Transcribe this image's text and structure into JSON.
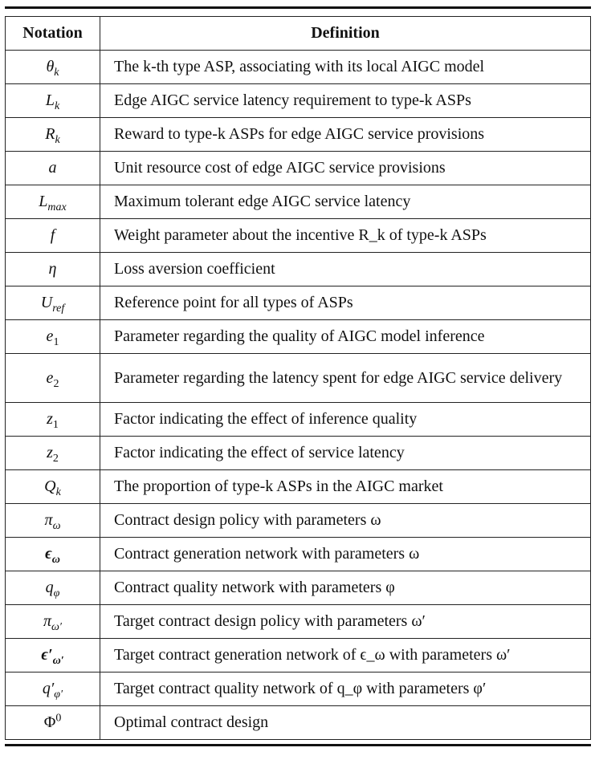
{
  "header": {
    "notation": "Notation",
    "definition": "Definition"
  },
  "rows": [
    {
      "sym": "θ",
      "sub": "k",
      "def": "The k-th type ASP, associating with its local AIGC model"
    },
    {
      "sym": "L",
      "sub": "k",
      "def": "Edge AIGC service latency requirement to type-k ASPs"
    },
    {
      "sym": "R",
      "sub": "k",
      "def": "Reward to type-k ASPs for edge AIGC service provisions"
    },
    {
      "sym": "a",
      "def": "Unit resource cost of edge AIGC service provisions"
    },
    {
      "sym": "L",
      "sub": "max",
      "def": "Maximum tolerant edge AIGC service latency"
    },
    {
      "sym": "f",
      "def": "Weight parameter about the incentive R_k of type-k ASPs"
    },
    {
      "sym": "η",
      "def": "Loss aversion coefficient"
    },
    {
      "sym": "U",
      "sub": "ref",
      "def": "Reference point for all types of ASPs"
    },
    {
      "sym": "e",
      "sub": "1",
      "def": "Parameter regarding the quality of AIGC model inference"
    },
    {
      "sym": "e",
      "sub": "2",
      "def": "Parameter regarding the latency spent for edge AIGC service delivery"
    },
    {
      "sym": "z",
      "sub": "1",
      "def": "Factor indicating the effect of inference quality"
    },
    {
      "sym": "z",
      "sub": "2",
      "def": "Factor indicating the effect of service latency"
    },
    {
      "sym": "Q",
      "sub": "k",
      "def": "The proportion of type-k ASPs in the AIGC market"
    },
    {
      "sym": "π",
      "sub": "ω",
      "def": "Contract design policy with parameters ω"
    },
    {
      "sym": "ϵ",
      "sub": "ω",
      "def": "Contract generation network with parameters ω"
    },
    {
      "sym": "q",
      "sub": "φ",
      "def": "Contract quality network with parameters φ"
    },
    {
      "sym": "π",
      "sub": "ω′",
      "def": "Target contract design policy with parameters ω′"
    },
    {
      "sym": "ϵ′",
      "sub": "ω′",
      "def": "Target contract generation network of ϵ_ω with parameters ω′"
    },
    {
      "sym": "q′",
      "sub": "φ′",
      "def": "Target contract quality network of q_φ with parameters φ′"
    },
    {
      "sym": "Φ",
      "sup": "0",
      "def": "Optimal contract design"
    }
  ]
}
